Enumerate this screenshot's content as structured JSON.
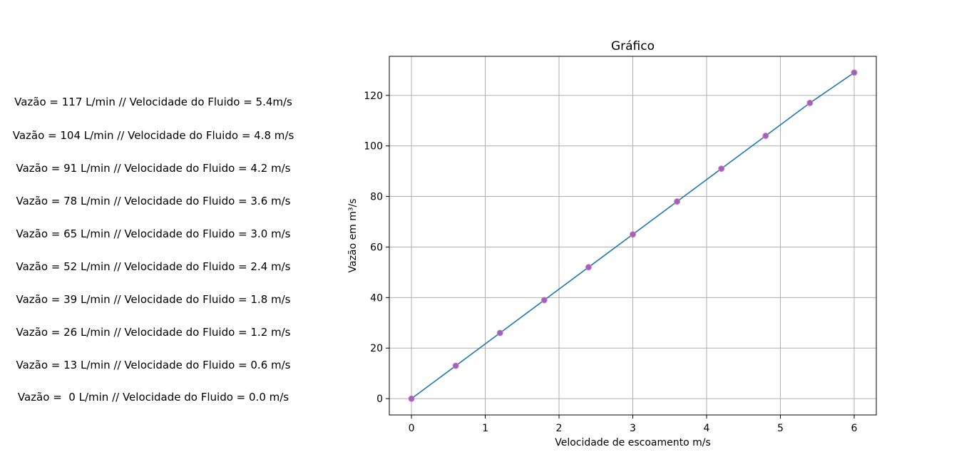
{
  "readings": [
    "Vazão = 117 L/min // Velocidade do Fluido = 5.4m/s",
    "Vazão = 104 L/min // Velocidade do Fluido = 4.8 m/s",
    "Vazão = 91 L/min // Velocidade do Fluido = 4.2 m/s",
    "Vazão = 78 L/min // Velocidade do Fluido = 3.6 m/s",
    "Vazão = 65 L/min // Velocidade do Fluido = 3.0 m/s",
    "Vazão = 52 L/min // Velocidade do Fluido = 2.4 m/s",
    "Vazão = 39 L/min // Velocidade do Fluido = 1.8 m/s",
    "Vazão = 26 L/min // Velocidade do Fluido = 1.2 m/s",
    "Vazão = 13 L/min // Velocidade do Fluido = 0.6 m/s",
    "Vazão =  0 L/min // Velocidade do Fluido = 0.0 m/s"
  ],
  "colors": {
    "line": "#1f77b4",
    "marker_fill": "#9467bd",
    "marker_edge": "#e377c2",
    "grid": "#b0b0b0",
    "axes": "#000000"
  },
  "chart_data": {
    "type": "line",
    "title": "Gráfico",
    "xlabel": "Velocidade de escoamento m/s",
    "ylabel": "Vazão em m³/s",
    "x": [
      0,
      0.6,
      1.2,
      1.8,
      2.4,
      3.0,
      3.6,
      4.2,
      4.8,
      5.4,
      6.0
    ],
    "series": [
      {
        "values": [
          0,
          13,
          26,
          39,
          52,
          65,
          78,
          91,
          104,
          117,
          129
        ],
        "markers": true
      }
    ],
    "xlim": [
      -0.3,
      6.3
    ],
    "ylim": [
      -6.45,
      135.45
    ],
    "xticks": [
      0,
      1,
      2,
      3,
      4,
      5,
      6
    ],
    "yticks": [
      0,
      20,
      40,
      60,
      80,
      100,
      120
    ],
    "grid": true,
    "legend": false
  }
}
